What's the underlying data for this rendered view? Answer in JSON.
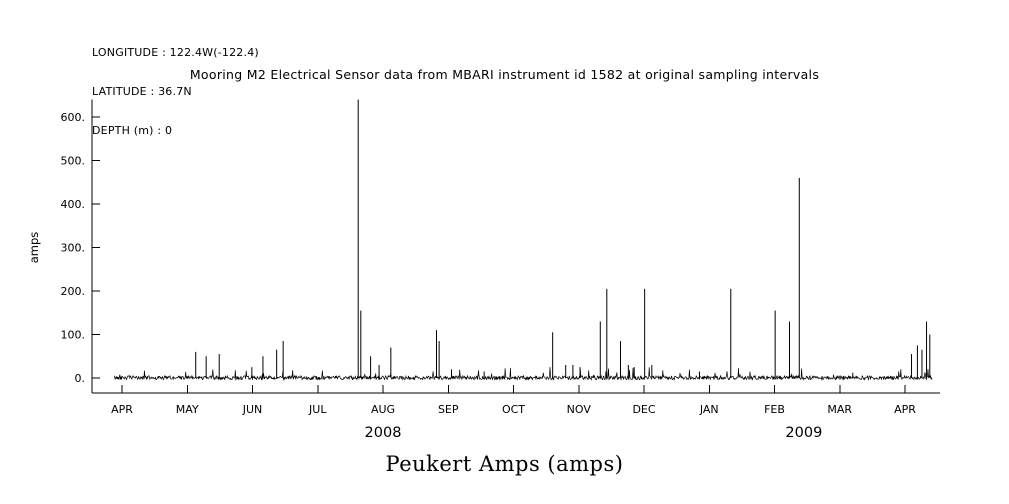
{
  "header": {
    "longitude": "LONGITUDE : 122.4W(-122.4)",
    "latitude": "LATITUDE : 36.7N",
    "depth": "DEPTH (m) : 0"
  },
  "caption": "Peukert Amps (amps)",
  "chart_data": {
    "type": "line",
    "title": "Mooring M2 Electrical Sensor data from MBARI instrument id 1582 at original sampling intervals",
    "xlabel": "",
    "ylabel": "amps",
    "ylim": [
      -35,
      640
    ],
    "yticks": [
      0,
      100,
      200,
      300,
      400,
      500,
      600
    ],
    "ytick_labels": [
      "0.",
      "100.",
      "200.",
      "300.",
      "400.",
      "500.",
      "600."
    ],
    "x_unit": "months since APR 2008",
    "xlim": [
      -0.46,
      12.52
    ],
    "month_labels": [
      "APR",
      "MAY",
      "JUN",
      "JUL",
      "AUG",
      "SEP",
      "OCT",
      "NOV",
      "DEC",
      "JAN",
      "FEB",
      "MAR",
      "APR"
    ],
    "year_labels": [
      {
        "label": "2008",
        "x": 4.0
      },
      {
        "label": "2009",
        "x": 10.45
      }
    ],
    "grid": false,
    "legend": false,
    "line_color": "#000000",
    "baseline": {
      "mean": 0,
      "noise_low": -4,
      "noise_high": 5,
      "minor_spike_max": 24,
      "x_start": -0.12,
      "x_end": 12.42
    },
    "spikes": [
      [
        1.13,
        60
      ],
      [
        1.29,
        50
      ],
      [
        1.49,
        55
      ],
      [
        1.99,
        25
      ],
      [
        2.16,
        50
      ],
      [
        2.37,
        65
      ],
      [
        2.47,
        85
      ],
      [
        3.62,
        640
      ],
      [
        3.66,
        155
      ],
      [
        3.81,
        50
      ],
      [
        3.94,
        30
      ],
      [
        4.12,
        70
      ],
      [
        4.82,
        110
      ],
      [
        4.86,
        85
      ],
      [
        5.05,
        20
      ],
      [
        5.55,
        15
      ],
      [
        6.6,
        105
      ],
      [
        6.8,
        30
      ],
      [
        6.91,
        30
      ],
      [
        7.02,
        25
      ],
      [
        7.33,
        130
      ],
      [
        7.43,
        205
      ],
      [
        7.64,
        85
      ],
      [
        7.76,
        30
      ],
      [
        7.85,
        25
      ],
      [
        8.01,
        205
      ],
      [
        8.12,
        30
      ],
      [
        8.85,
        15
      ],
      [
        9.33,
        205
      ],
      [
        10.01,
        155
      ],
      [
        10.23,
        130
      ],
      [
        10.38,
        460
      ],
      [
        11.2,
        12
      ],
      [
        12.1,
        55
      ],
      [
        12.19,
        75
      ],
      [
        12.26,
        65
      ],
      [
        12.33,
        130
      ],
      [
        12.38,
        100
      ]
    ]
  }
}
